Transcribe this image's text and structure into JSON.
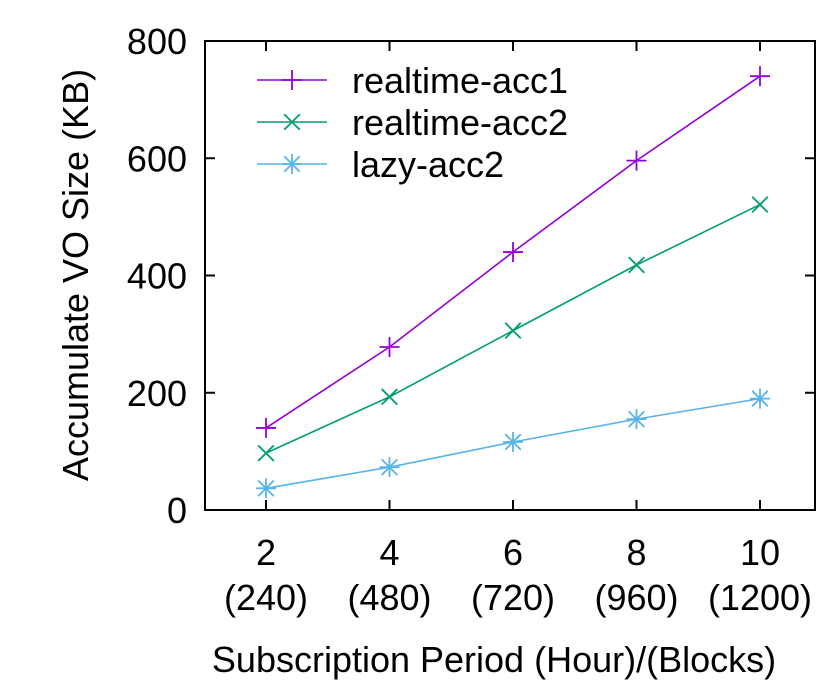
{
  "chart_data": {
    "type": "line",
    "title": "",
    "xlabel": "Subscription Period (Hour)/(Blocks)",
    "ylabel": "Accumulate VO Size (KB)",
    "ylim": [
      0,
      800
    ],
    "yticks": [
      "0",
      "200",
      "400",
      "600",
      "800"
    ],
    "x": [
      2,
      4,
      6,
      8,
      10
    ],
    "xtick_main": [
      "2",
      "4",
      "6",
      "8",
      "10"
    ],
    "xtick_sub": [
      "(240)",
      "(480)",
      "(720)",
      "(960)",
      "(1200)"
    ],
    "grid": false,
    "legend_position": "top-left",
    "series": [
      {
        "name": "realtime-acc1",
        "values": [
          140,
          278,
          440,
          596,
          740
        ],
        "color": "#9400d3",
        "marker": "plus"
      },
      {
        "name": "realtime-acc2",
        "values": [
          97,
          193,
          306,
          418,
          521
        ],
        "color": "#009e73",
        "marker": "cross"
      },
      {
        "name": "lazy-acc2",
        "values": [
          37,
          73,
          116,
          155,
          190
        ],
        "color": "#56b4e9",
        "marker": "star"
      }
    ]
  }
}
